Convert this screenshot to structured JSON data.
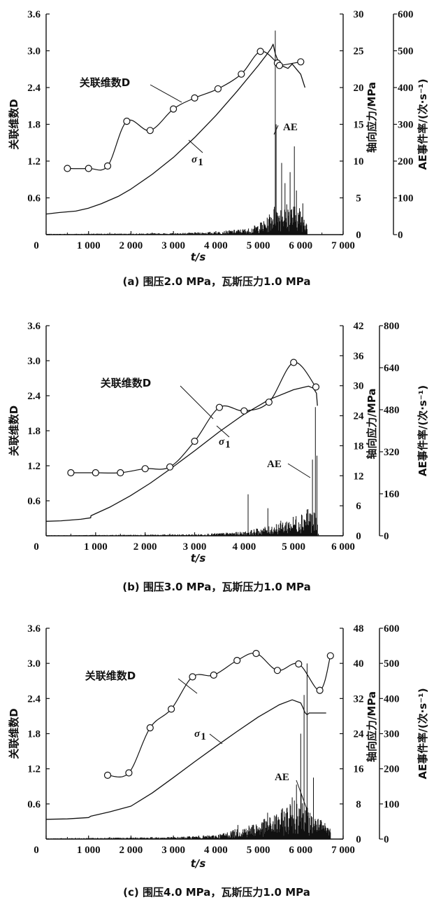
{
  "chart_data": [
    {
      "type": "line",
      "caption": "(a) 围压2.0 MPa，瓦斯压力1.0 MPa",
      "xlabel": "t/s",
      "ylabel_left": "关联维数D",
      "ylabel_right1": "轴向应力/MPa",
      "ylabel_right2": "AE事件率/(次·s⁻¹)",
      "xlim": [
        0,
        7000
      ],
      "x_ticks": [
        "0",
        "1 000",
        "2 000",
        "3 000",
        "4 000",
        "5 000",
        "6 000",
        "7 000"
      ],
      "ylim_left": [
        0,
        3.6
      ],
      "y_ticks_left": [
        "0",
        "0.6",
        "1.2",
        "1.8",
        "2.4",
        "3.0",
        "3.6"
      ],
      "ylim_right1": [
        0,
        30
      ],
      "y_ticks_right1": [
        "0",
        "5",
        "10",
        "15",
        "20",
        "25",
        "30"
      ],
      "ylim_right2": [
        0,
        600
      ],
      "y_ticks_right2": [
        "0",
        "100",
        "200",
        "300",
        "400",
        "500",
        "600"
      ],
      "annotations": {
        "d_label": "关联维数D",
        "sigma_label": "σ",
        "sigma_sub": "1",
        "ae_label": "AE"
      },
      "series": [
        {
          "role": "D",
          "axis": "left",
          "x": [
            500,
            1000,
            1450,
            1900,
            2450,
            3000,
            3500,
            4050,
            4600,
            5050,
            5450,
            5500,
            6000
          ],
          "y": [
            1.08,
            1.08,
            1.12,
            1.85,
            1.7,
            2.05,
            2.23,
            2.38,
            2.62,
            2.99,
            2.8,
            2.76,
            2.82
          ]
        },
        {
          "role": "sigma1",
          "axis": "right1",
          "x": [
            0,
            300,
            700,
            1000,
            1300,
            1700,
            2000,
            2500,
            3000,
            3500,
            4000,
            4500,
            5000,
            5200,
            5300,
            5350,
            5400,
            5500,
            5700,
            5800,
            6000,
            6100
          ],
          "y": [
            2.8,
            3.0,
            3.2,
            3.6,
            4.2,
            5.2,
            6.2,
            8.2,
            10.5,
            13.2,
            16.2,
            19.5,
            23.0,
            24.5,
            25.3,
            25.9,
            24.6,
            23.1,
            22.6,
            23.2,
            21.8,
            20.0
          ]
        },
        {
          "role": "AE",
          "axis": "right2",
          "base": [
            [
              0,
              1
            ],
            [
              3000,
              2
            ],
            [
              4000,
              4
            ],
            [
              4800,
              9
            ],
            [
              5200,
              22
            ],
            [
              5350,
              40
            ],
            [
              5600,
              45
            ],
            [
              6000,
              38
            ],
            [
              6150,
              30
            ]
          ],
          "spikes": [
            [
              5400,
              555
            ],
            [
              5420,
              300
            ],
            [
              5550,
              195
            ],
            [
              5630,
              140
            ],
            [
              5750,
              170
            ],
            [
              5850,
              240
            ],
            [
              5900,
              120
            ],
            [
              6050,
              85
            ],
            [
              4950,
              15
            ]
          ]
        }
      ]
    },
    {
      "type": "line",
      "caption": "(b) 围压3.0 MPa，瓦斯压力1.0 MPa",
      "xlabel": "t/s",
      "ylabel_left": "关联维数D",
      "ylabel_right1": "轴向应力/MPa",
      "ylabel_right2": "AE事件率/(次·s⁻¹)",
      "xlim": [
        0,
        6000
      ],
      "x_ticks": [
        "0",
        "1 000",
        "2 000",
        "3 000",
        "4 000",
        "5 000",
        "6 000"
      ],
      "ylim_left": [
        0,
        3.6
      ],
      "y_ticks_left": [
        "0",
        "0.6",
        "1.2",
        "1.8",
        "2.4",
        "3.0",
        "3.6"
      ],
      "ylim_right1": [
        0,
        42
      ],
      "y_ticks_right1": [
        "0",
        "6",
        "12",
        "18",
        "24",
        "30",
        "36",
        "42"
      ],
      "ylim_right2": [
        0,
        800
      ],
      "y_ticks_right2": [
        "0",
        "160",
        "320",
        "480",
        "640",
        "800"
      ],
      "annotations": {
        "d_label": "关联维数D",
        "sigma_label": "σ",
        "sigma_sub": "1",
        "ae_label": "AE"
      },
      "series": [
        {
          "role": "D",
          "axis": "left",
          "x": [
            500,
            1000,
            1500,
            2000,
            2500,
            3000,
            3500,
            4000,
            4500,
            5000,
            5450
          ],
          "y": [
            1.08,
            1.08,
            1.08,
            1.15,
            1.18,
            1.62,
            2.2,
            2.14,
            2.29,
            2.97,
            2.55
          ]
        },
        {
          "role": "sigma1",
          "axis": "right1",
          "x": [
            0,
            300,
            700,
            900,
            905,
            1300,
            1700,
            2100,
            2500,
            3000,
            3500,
            4000,
            4500,
            5000,
            5300,
            5400,
            5460,
            5480
          ],
          "y": [
            2.9,
            3.0,
            3.3,
            3.6,
            4.0,
            5.8,
            8.0,
            10.5,
            13.3,
            17.0,
            20.8,
            24.3,
            27.2,
            29.2,
            29.9,
            29.5,
            28.5,
            26.0
          ]
        },
        {
          "role": "AE",
          "axis": "right2",
          "base": [
            [
              0,
              1
            ],
            [
              3000,
              3
            ],
            [
              4000,
              8
            ],
            [
              4500,
              20
            ],
            [
              5000,
              38
            ],
            [
              5300,
              60
            ],
            [
              5480,
              40
            ]
          ],
          "spikes": [
            [
              4080,
              158
            ],
            [
              4480,
              105
            ],
            [
              5270,
              100
            ],
            [
              5380,
              290
            ],
            [
              5440,
              490
            ],
            [
              5470,
              305
            ],
            [
              5130,
              45
            ]
          ]
        }
      ]
    },
    {
      "type": "line",
      "caption": "(c) 围压4.0 MPa，瓦斯压力1.0 MPa",
      "xlabel": "t/s",
      "ylabel_left": "关联维数D",
      "ylabel_right1": "轴向应力/MPa",
      "ylabel_right2": "AE事件率/(次·s⁻¹)",
      "xlim": [
        0,
        7000
      ],
      "x_ticks": [
        "0",
        "1 000",
        "2 000",
        "3 000",
        "4 000",
        "5 000",
        "6 000",
        "7 000"
      ],
      "ylim_left": [
        0,
        3.6
      ],
      "y_ticks_left": [
        "0",
        "0.6",
        "1.2",
        "1.8",
        "2.4",
        "3.0",
        "3.6"
      ],
      "ylim_right1": [
        0,
        48
      ],
      "y_ticks_right1": [
        "0",
        "8",
        "16",
        "24",
        "32",
        "40",
        "48"
      ],
      "ylim_right2": [
        0,
        600
      ],
      "y_ticks_right2": [
        "0",
        "100",
        "200",
        "300",
        "400",
        "500",
        "600"
      ],
      "annotations": {
        "d_label": "关联维数D",
        "sigma_label": "σ",
        "sigma_sub": "1",
        "ae_label": "AE"
      },
      "series": [
        {
          "role": "D",
          "axis": "left",
          "x": [
            1450,
            1950,
            2450,
            2950,
            3450,
            3950,
            4500,
            4950,
            5450,
            5950,
            6450,
            6700
          ],
          "y": [
            1.09,
            1.13,
            1.9,
            2.22,
            2.77,
            2.8,
            3.05,
            3.17,
            2.88,
            2.99,
            2.54,
            3.13
          ]
        },
        {
          "role": "sigma1",
          "axis": "right1",
          "x": [
            0,
            500,
            1000,
            1050,
            1500,
            2000,
            2500,
            3000,
            3500,
            4000,
            4500,
            5000,
            5500,
            5800,
            6000,
            6050,
            6100,
            6150,
            6200,
            6600
          ],
          "y": [
            4.5,
            4.6,
            4.9,
            5.2,
            6.2,
            7.5,
            10.5,
            14.0,
            17.6,
            21.1,
            24.5,
            27.8,
            30.6,
            31.7,
            31.0,
            30.0,
            28.8,
            28.3,
            28.7,
            28.7
          ]
        },
        {
          "role": "AE",
          "axis": "right2",
          "base": [
            [
              0,
              1
            ],
            [
              3000,
              3
            ],
            [
              4000,
              6
            ],
            [
              4500,
              15
            ],
            [
              5200,
              30
            ],
            [
              5600,
              45
            ],
            [
              6000,
              75
            ],
            [
              6200,
              40
            ],
            [
              6700,
              18
            ]
          ],
          "spikes": [
            [
              5220,
              75
            ],
            [
              4520,
              40
            ],
            [
              5900,
              155
            ],
            [
              6000,
              300
            ],
            [
              6080,
              410
            ],
            [
              6150,
              500
            ],
            [
              6300,
              175
            ],
            [
              6400,
              55
            ]
          ]
        }
      ]
    }
  ]
}
